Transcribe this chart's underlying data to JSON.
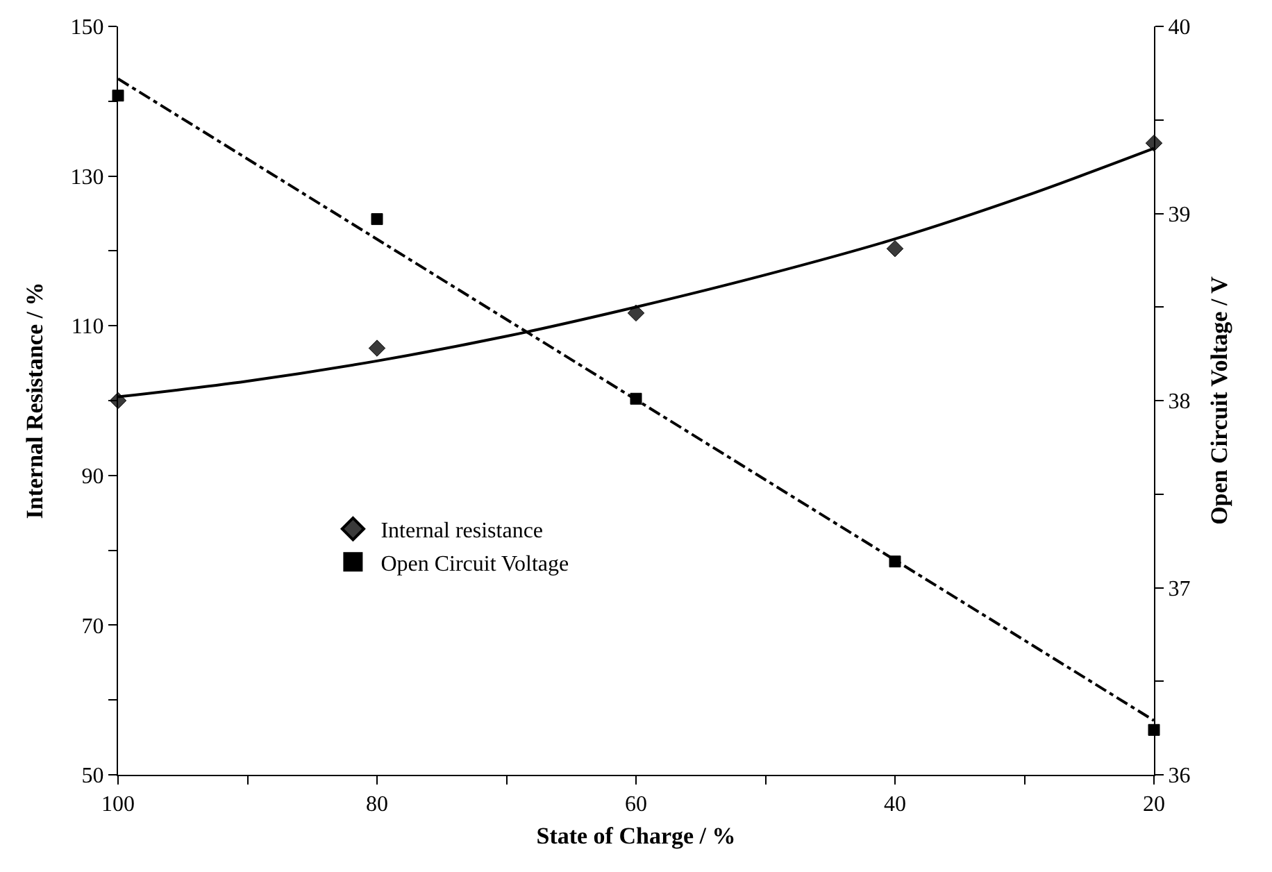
{
  "chart_data": {
    "type": "scatter",
    "xlabel": "State of Charge / %",
    "ylabel": "Internal Resistance / %",
    "y2label": "Open Circuit Voltage / V",
    "xlim": [
      100,
      20
    ],
    "xticks": [
      100,
      {
        "value": 90,
        "label": null
      },
      80,
      {
        "value": 70,
        "label": null
      },
      60,
      {
        "value": 50,
        "label": null
      },
      40,
      {
        "value": 30,
        "label": null
      },
      20
    ],
    "ylim": [
      50,
      150
    ],
    "yticks": [
      50,
      {
        "value": 60,
        "label": null
      },
      70,
      {
        "value": 80,
        "label": null
      },
      90,
      {
        "value": 100,
        "label": null
      },
      110,
      {
        "value": 120,
        "label": null
      },
      130,
      {
        "value": 140,
        "label": null
      },
      150
    ],
    "y2lim": [
      36,
      40
    ],
    "y2ticks": [
      36,
      {
        "value": 36.5,
        "label": null
      },
      37,
      {
        "value": 37.5,
        "label": null
      },
      38,
      {
        "value": 38.5,
        "label": null
      },
      39,
      {
        "value": 39.5,
        "label": null
      },
      40
    ],
    "legend": "center left",
    "series": [
      {
        "name": "Internal resistance",
        "marker": "diamond",
        "color": "#3a3a3a",
        "x": [
          100,
          80,
          60,
          40,
          20
        ],
        "values": [
          100,
          107,
          111.7,
          120.3,
          134.4
        ]
      },
      {
        "name": "Open Circuit Voltage",
        "marker": "square",
        "color": "#000000",
        "axis": "y2",
        "x": [
          100,
          80,
          60,
          40,
          20
        ],
        "values": [
          39.63,
          38.97,
          38.01,
          37.14,
          36.24
        ]
      },
      {
        "type": "line",
        "marker": "none",
        "line_style": "solid",
        "color": "#000000",
        "x": [
          100,
          90,
          80,
          70,
          60,
          50,
          40,
          30,
          20
        ],
        "values": [
          100.5,
          102.6,
          105.3,
          108.6,
          112.5,
          116.8,
          121.6,
          127.3,
          133.7
        ]
      },
      {
        "type": "line",
        "marker": "none",
        "line_style": "dashdot",
        "color": "#000000",
        "axis": "y2",
        "x": [
          100,
          20
        ],
        "values": [
          39.72,
          36.29
        ]
      }
    ]
  }
}
